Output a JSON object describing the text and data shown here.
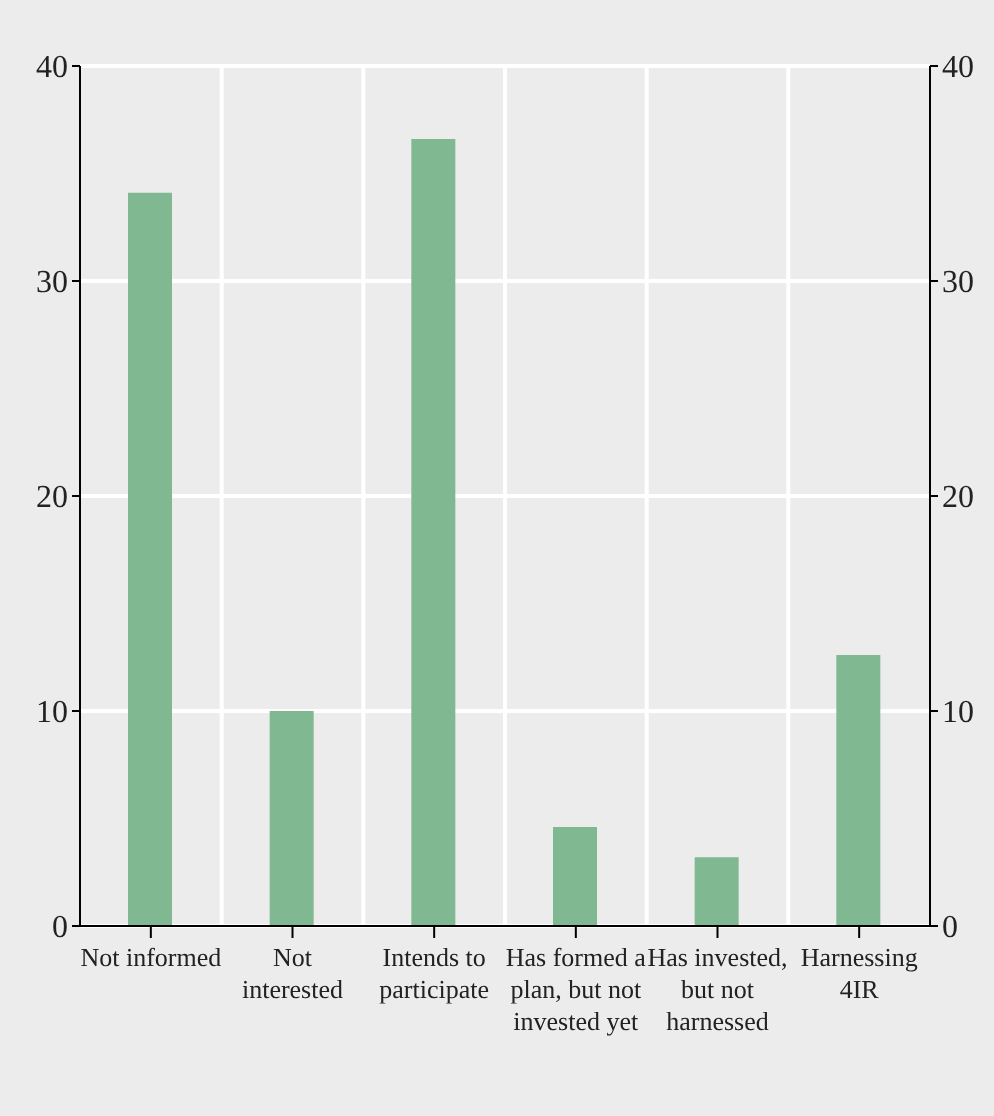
{
  "chart_data": {
    "type": "bar",
    "categories": [
      "Not informed",
      "Not interested",
      "Intends to participate",
      "Has formed a plan, but not invested yet",
      "Has invested, but not harnessed",
      "Harnessing 4IR"
    ],
    "values": [
      34.1,
      10.0,
      36.6,
      4.6,
      3.2,
      12.6
    ],
    "color": "#80b892",
    "ylim": [
      0,
      40
    ],
    "yticks": [
      0,
      10,
      20,
      30,
      40
    ],
    "y2lim": [
      0,
      40
    ],
    "y2ticks": [
      0,
      10,
      20,
      30,
      40
    ],
    "grid": true
  }
}
